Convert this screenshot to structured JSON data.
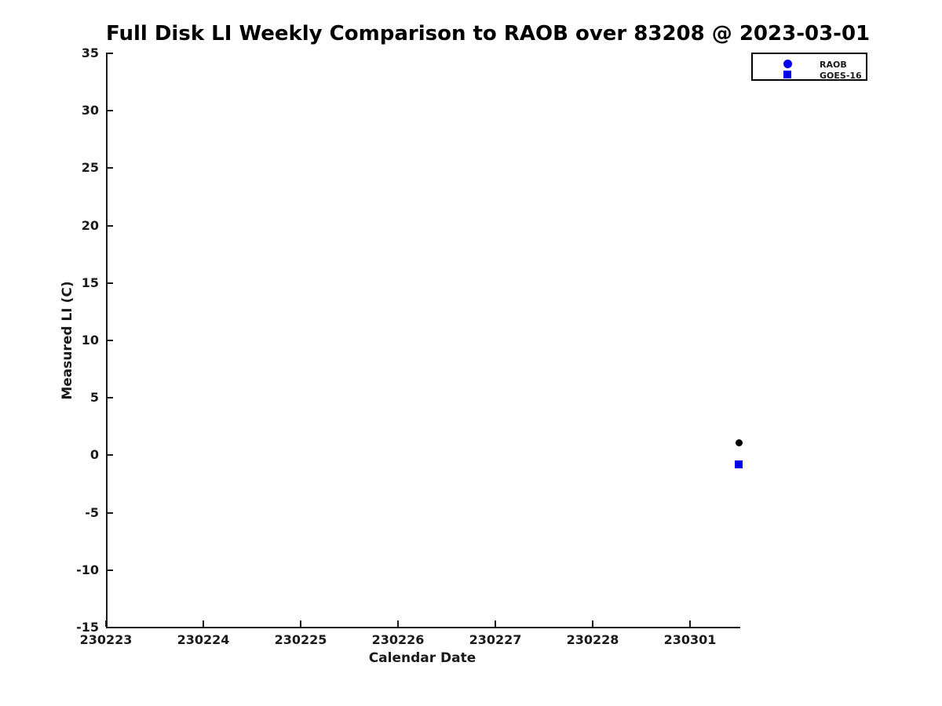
{
  "chart_data": {
    "type": "scatter",
    "title": "Full Disk LI Weekly Comparison to RAOB over 83208 @ 2023-03-01",
    "xlabel": "Calendar Date",
    "ylabel": "Measured LI (C)",
    "x_tick_labels": [
      "230223",
      "230224",
      "230225",
      "230226",
      "230227",
      "230228",
      "230301"
    ],
    "x_tick_positions": [
      0,
      1,
      2,
      3,
      4,
      5,
      6
    ],
    "x_unit": "days since 230223",
    "xlim": [
      0,
      6.5
    ],
    "y_ticks": [
      35,
      30,
      25,
      20,
      15,
      10,
      5,
      0,
      -5,
      -10,
      -15
    ],
    "ylim": [
      -15,
      35
    ],
    "grid": false,
    "background_color": "#ffffff",
    "axis_color": "#1a1a1a",
    "legend_position": "top-right outside plot",
    "series": [
      {
        "name": "RAOB",
        "marker": "circle",
        "marker_color": "#000000",
        "legend_marker_color": "#0000ee",
        "points": [
          {
            "x": 6.5,
            "y": 1.1
          }
        ]
      },
      {
        "name": "GOES-16",
        "marker": "square",
        "marker_color": "#0000ee",
        "legend_marker_color": "#0000ee",
        "points": [
          {
            "x": 6.5,
            "y": -0.8
          }
        ]
      }
    ]
  }
}
